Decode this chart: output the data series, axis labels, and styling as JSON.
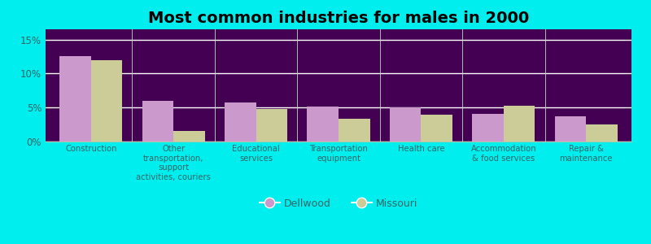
{
  "title": "Most common industries for males in 2000",
  "categories": [
    "Construction",
    "Other\ntransportation,\nsupport\nactivities, couriers",
    "Educational\nservices",
    "Transportation\nequipment",
    "Health care",
    "Accommodation\n& food services",
    "Repair &\nmaintenance"
  ],
  "dellwood_values": [
    12.5,
    6.0,
    5.7,
    5.2,
    5.0,
    4.1,
    3.7
  ],
  "missouri_values": [
    12.0,
    1.5,
    4.8,
    3.3,
    3.9,
    5.3,
    2.5
  ],
  "dellwood_color": "#cc99cc",
  "missouri_color": "#cccc99",
  "background_color": "#00eeee",
  "ylim": [
    0,
    16.5
  ],
  "yticks": [
    0,
    5,
    10,
    15
  ],
  "ytick_labels": [
    "0%",
    "5%",
    "10%",
    "15%"
  ],
  "bar_width": 0.38,
  "title_fontsize": 14,
  "legend_labels": [
    "Dellwood",
    "Missouri"
  ]
}
